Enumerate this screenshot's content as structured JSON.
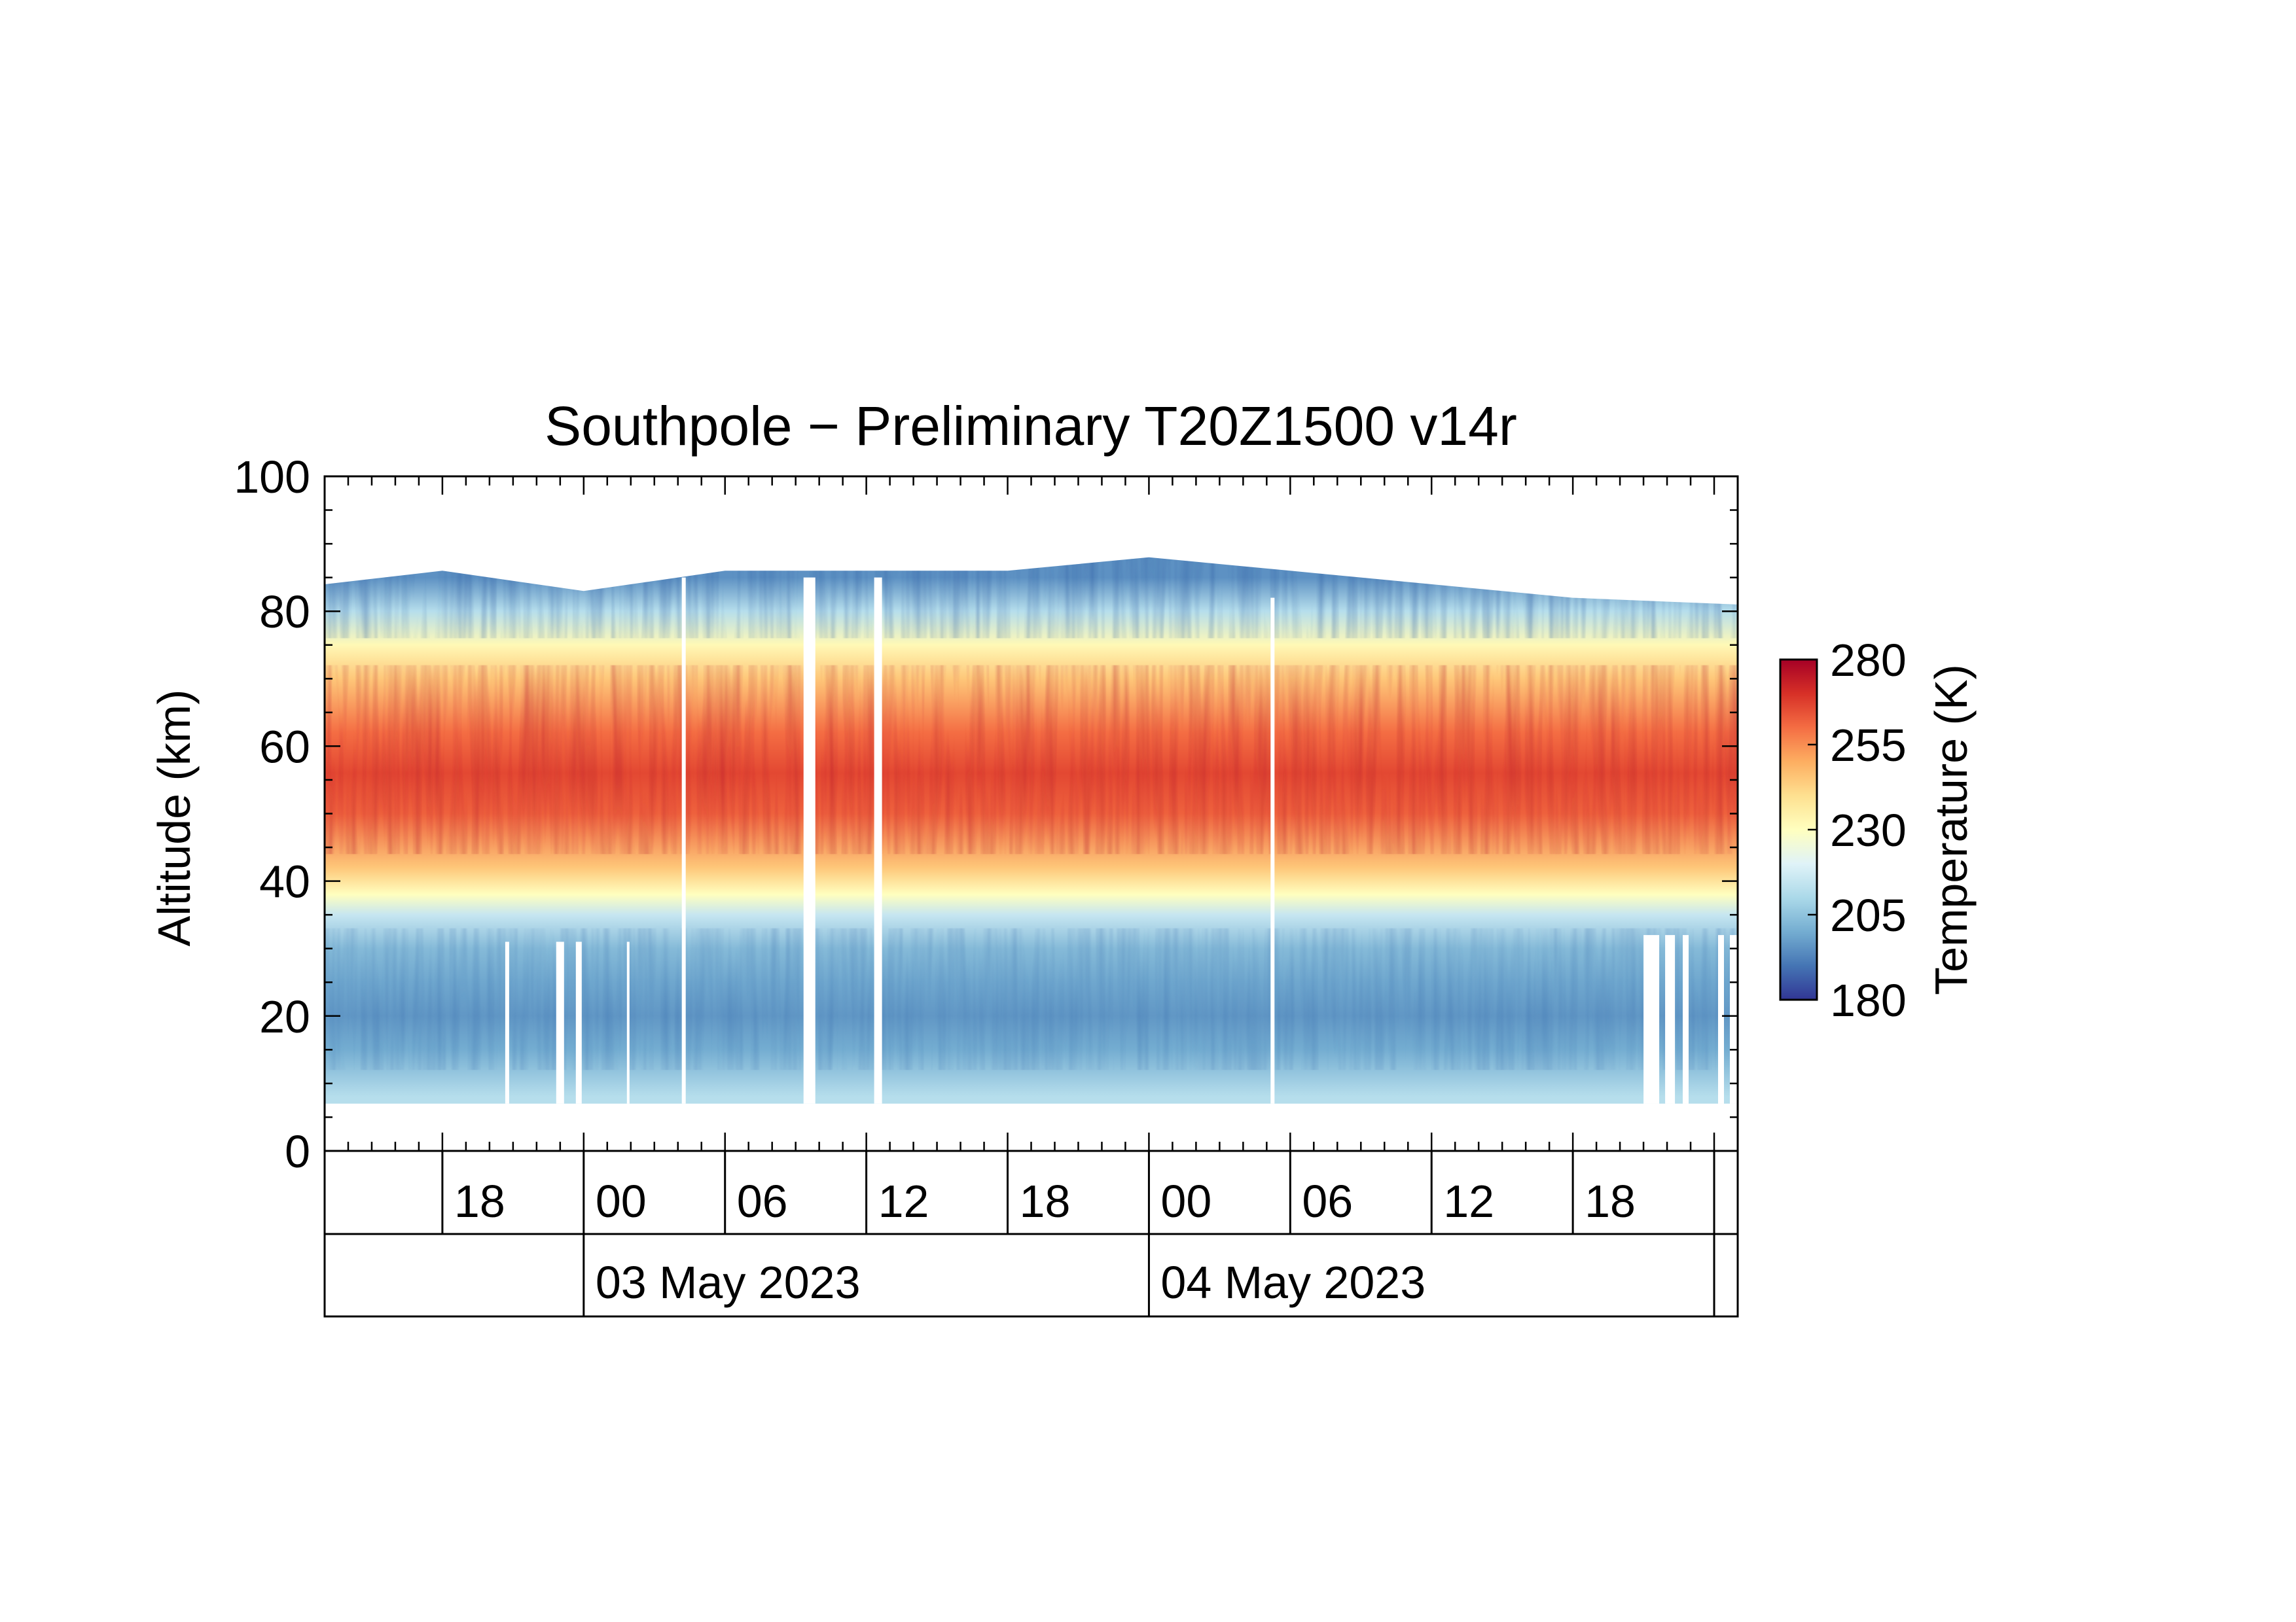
{
  "chart_data": {
    "type": "heatmap",
    "title": "Southpole − Preliminary T20Z1500 v14r",
    "ylabel": "Altitude (km)",
    "ylim": [
      0,
      100
    ],
    "y_ticks": [
      "0",
      "20",
      "40",
      "60",
      "80",
      "100"
    ],
    "x_axis": {
      "type": "time",
      "range": [
        "2023-05-02T13:00",
        "2023-05-05T01:00"
      ],
      "hour_ticks": [
        "18",
        "00",
        "06",
        "12",
        "18",
        "00",
        "06",
        "12",
        "18"
      ],
      "date_labels": [
        "03 May 2023",
        "04 May 2023"
      ]
    },
    "colorbar": {
      "label": "Temperature (K)",
      "range": [
        180,
        280
      ],
      "ticks": [
        "180",
        "205",
        "230",
        "255",
        "280"
      ],
      "colormap": [
        "#313695",
        "#4575b4",
        "#74add1",
        "#abd9e9",
        "#e0f3f8",
        "#ffffbf",
        "#fee090",
        "#fdae61",
        "#f46d43",
        "#d73027",
        "#a50026"
      ]
    },
    "temperature_profile_K": [
      {
        "altitude_km": 8,
        "temperature_K": 212
      },
      {
        "altitude_km": 15,
        "temperature_K": 200
      },
      {
        "altitude_km": 20,
        "temperature_K": 196
      },
      {
        "altitude_km": 25,
        "temperature_K": 199
      },
      {
        "altitude_km": 30,
        "temperature_K": 203
      },
      {
        "altitude_km": 35,
        "temperature_K": 215
      },
      {
        "altitude_km": 38,
        "temperature_K": 230
      },
      {
        "altitude_km": 42,
        "temperature_K": 245
      },
      {
        "altitude_km": 50,
        "temperature_K": 262
      },
      {
        "altitude_km": 56,
        "temperature_K": 266
      },
      {
        "altitude_km": 62,
        "temperature_K": 260
      },
      {
        "altitude_km": 70,
        "temperature_K": 245
      },
      {
        "altitude_km": 75,
        "temperature_K": 232
      },
      {
        "altitude_km": 80,
        "temperature_K": 212
      },
      {
        "altitude_km": 85,
        "temperature_K": 195
      }
    ],
    "data_top_km": [
      {
        "time": "2023-05-02T13:00",
        "altitude_km": 84
      },
      {
        "time": "2023-05-02T18:00",
        "altitude_km": 86
      },
      {
        "time": "2023-05-03T00:00",
        "altitude_km": 83
      },
      {
        "time": "2023-05-03T06:00",
        "altitude_km": 86
      },
      {
        "time": "2023-05-03T18:00",
        "altitude_km": 86
      },
      {
        "time": "2023-05-04T00:00",
        "altitude_km": 88
      },
      {
        "time": "2023-05-04T06:00",
        "altitude_km": 86
      },
      {
        "time": "2023-05-04T18:00",
        "altitude_km": 82
      },
      {
        "time": "2023-05-05T01:00",
        "altitude_km": 81
      }
    ],
    "data_bottom_km": 7,
    "full_gaps": [
      {
        "start": "2023-05-03T04:10",
        "end": "2023-05-03T04:20",
        "bottom_km": 7,
        "top_km": 85
      },
      {
        "start": "2023-05-03T09:20",
        "end": "2023-05-03T09:50",
        "bottom_km": 7,
        "top_km": 85
      },
      {
        "start": "2023-05-03T12:20",
        "end": "2023-05-03T12:40",
        "bottom_km": 7,
        "top_km": 85
      },
      {
        "start": "2023-05-04T05:10",
        "end": "2023-05-04T05:20",
        "bottom_km": 7,
        "top_km": 82
      }
    ],
    "lower_gaps": [
      {
        "start": "2023-05-02T20:40",
        "end": "2023-05-02T20:50",
        "bottom_km": 7,
        "top_km": 31
      },
      {
        "start": "2023-05-02T22:50",
        "end": "2023-05-02T23:10",
        "bottom_km": 7,
        "top_km": 31
      },
      {
        "start": "2023-05-02T23:40",
        "end": "2023-05-02T23:55",
        "bottom_km": 7,
        "top_km": 31
      },
      {
        "start": "2023-05-03T01:50",
        "end": "2023-05-03T01:55",
        "bottom_km": 7,
        "top_km": 31
      },
      {
        "start": "2023-05-04T21:00",
        "end": "2023-05-04T21:40",
        "bottom_km": 7,
        "top_km": 32
      },
      {
        "start": "2023-05-04T21:55",
        "end": "2023-05-04T22:20",
        "bottom_km": 7,
        "top_km": 32
      },
      {
        "start": "2023-05-04T22:40",
        "end": "2023-05-04T22:55",
        "bottom_km": 7,
        "top_km": 32
      },
      {
        "start": "2023-05-05T00:10",
        "end": "2023-05-05T00:25",
        "bottom_km": 7,
        "top_km": 32
      },
      {
        "start": "2023-05-05T00:40",
        "end": "2023-05-05T01:00",
        "bottom_km": 7,
        "top_km": 32
      }
    ]
  }
}
